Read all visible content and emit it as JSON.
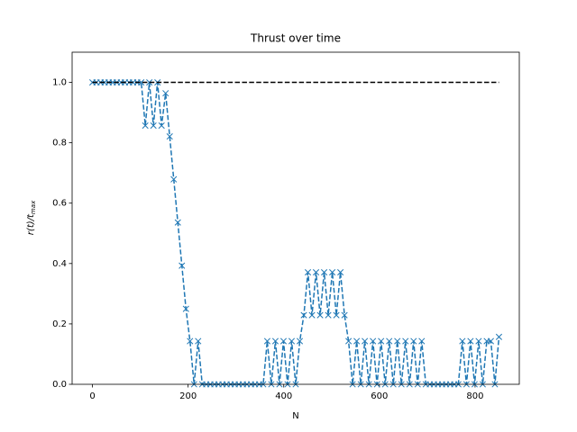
{
  "chart_data": {
    "type": "line",
    "title": "Thrust over time",
    "xlabel": "N",
    "ylabel": [
      "r(t)/t",
      "max"
    ],
    "xlim": [
      -42.5,
      892.5
    ],
    "ylim": [
      0,
      1.1
    ],
    "xticks": [
      0,
      200,
      400,
      600,
      800
    ],
    "yticks": [
      {
        "value": 0,
        "label": "0.0"
      },
      {
        "value": 0.2,
        "label": "0.2"
      },
      {
        "value": 0.4,
        "label": "0.4"
      },
      {
        "value": 0.6,
        "label": "0.6"
      },
      {
        "value": 0.8,
        "label": "0.8"
      },
      {
        "value": 1.0,
        "label": "1.0"
      }
    ],
    "series": [
      {
        "color": "#1f77b4",
        "marker": "x",
        "dash": "dashed",
        "x": [
          0,
          8.5,
          17,
          25.5,
          34,
          42.5,
          51,
          59.5,
          68,
          76.5,
          85,
          93.5,
          102,
          110.5,
          119,
          127.5,
          136,
          144.5,
          153,
          161.5,
          170,
          178.5,
          187,
          195.5,
          204,
          212.5,
          221,
          229.5,
          238,
          246.5,
          255,
          263.5,
          272,
          280.5,
          289,
          297.5,
          306,
          314.5,
          323,
          331.5,
          340,
          348.5,
          357,
          365.5,
          374,
          382.5,
          391,
          399.5,
          408,
          416.5,
          425,
          433.5,
          442,
          450.5,
          459,
          467.5,
          476,
          484.5,
          493,
          501.5,
          510,
          518.5,
          527,
          535.5,
          544,
          552.5,
          561,
          569.5,
          578,
          586.5,
          595,
          603.5,
          612,
          620.5,
          629,
          637.5,
          646,
          654.5,
          663,
          671.5,
          680,
          688.5,
          697,
          705.5,
          714,
          722.5,
          731,
          739.5,
          748,
          756.5,
          765,
          773.5,
          782,
          790.5,
          799,
          807.5,
          816,
          824.5,
          833,
          841.5,
          850
        ],
        "values": [
          1,
          1,
          1,
          1,
          1,
          1,
          1,
          1,
          1,
          1,
          1,
          1,
          1,
          0.857,
          1,
          0.857,
          1,
          0.857,
          0.964,
          0.821,
          0.679,
          0.536,
          0.393,
          0.25,
          0.143,
          0,
          0.143,
          0,
          0,
          0,
          0,
          0,
          0,
          0,
          0,
          0,
          0,
          0,
          0,
          0,
          0,
          0,
          0,
          0.143,
          0,
          0.143,
          0,
          0.143,
          0,
          0.143,
          0,
          0.143,
          0.229,
          0.371,
          0.229,
          0.371,
          0.229,
          0.371,
          0.229,
          0.371,
          0.229,
          0.371,
          0.229,
          0.143,
          0,
          0.143,
          0,
          0.143,
          0,
          0.143,
          0,
          0.143,
          0,
          0.143,
          0,
          0.143,
          0,
          0.143,
          0,
          0.143,
          0,
          0.143,
          0,
          0,
          0,
          0,
          0,
          0,
          0,
          0,
          0,
          0.143,
          0,
          0.143,
          0,
          0.143,
          0,
          0.143,
          0.143,
          0,
          0.157
        ]
      },
      {
        "color": "#000000",
        "dash": "dashed",
        "x": [
          0,
          850
        ],
        "values": [
          1,
          1
        ]
      }
    ]
  }
}
